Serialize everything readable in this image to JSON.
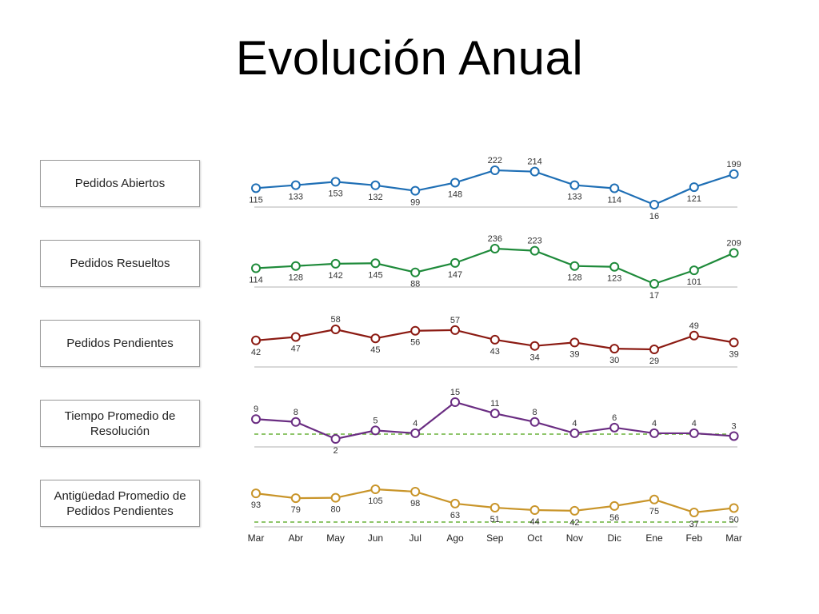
{
  "title": "Evolución Anual",
  "chart_data": {
    "type": "line",
    "categories": [
      "Mar",
      "Abr",
      "May",
      "Jun",
      "Jul",
      "Ago",
      "Sep",
      "Oct",
      "Nov",
      "Dic",
      "Ene",
      "Feb",
      "Mar"
    ],
    "series": [
      {
        "name": "Pedidos Abiertos",
        "color": "#1f6fb5",
        "values": [
          115,
          133,
          153,
          132,
          99,
          148,
          222,
          214,
          133,
          114,
          16,
          121,
          199
        ],
        "label_pos": [
          "below",
          "below",
          "below",
          "below",
          "below",
          "below",
          "above",
          "above",
          "below",
          "below",
          "below",
          "below",
          "above"
        ]
      },
      {
        "name": "Pedidos Resueltos",
        "color": "#1e8a3a",
        "values": [
          114,
          128,
          142,
          145,
          88,
          147,
          236,
          223,
          128,
          123,
          17,
          101,
          209
        ],
        "label_pos": [
          "below",
          "below",
          "below",
          "below",
          "below",
          "below",
          "above",
          "above",
          "below",
          "below",
          "below",
          "below",
          "above"
        ]
      },
      {
        "name": "Pedidos Pendientes",
        "color": "#8b1a12",
        "values": [
          42,
          47,
          58,
          45,
          56,
          57,
          43,
          34,
          39,
          30,
          29,
          49,
          39
        ],
        "label_pos": [
          "below",
          "below",
          "above",
          "below",
          "below",
          "above",
          "below",
          "below",
          "below",
          "below",
          "below",
          "above",
          "below"
        ]
      },
      {
        "name": "Tiempo Promedio de Resolución",
        "color": "#6a2d82",
        "values": [
          9,
          8,
          2,
          5,
          4,
          15,
          11,
          8,
          4,
          6,
          4,
          4,
          3
        ],
        "label_pos": [
          "above",
          "above",
          "below",
          "above",
          "above",
          "above",
          "above",
          "above",
          "above",
          "above",
          "above",
          "above",
          "above"
        ],
        "reference_line": {
          "color": "#6ab23a",
          "style": "dashed"
        }
      },
      {
        "name": "Antigüedad Promedio de Pedidos Pendientes",
        "color": "#c9952a",
        "values": [
          93,
          79,
          80,
          105,
          98,
          63,
          51,
          44,
          42,
          56,
          75,
          37,
          50
        ],
        "label_pos": [
          "below",
          "below",
          "below",
          "below",
          "below",
          "below",
          "below",
          "below",
          "below",
          "below",
          "below",
          "below",
          "below"
        ],
        "reference_line": {
          "color": "#6ab23a",
          "style": "dashed"
        }
      }
    ],
    "grid": false,
    "legend": "left"
  }
}
